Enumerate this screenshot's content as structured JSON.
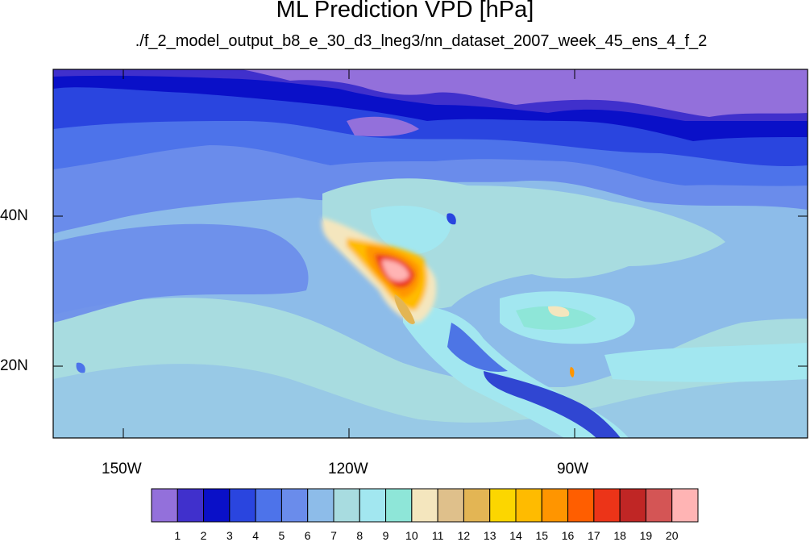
{
  "title": "ML Prediction VPD [hPa]",
  "subtitle": "./f_2_model_output_b8_e_30_d3_lneg3/nn_dataset_2007_week_45_ens_4_f_2",
  "lat_labels": [
    "40N",
    "20N"
  ],
  "lon_labels": [
    "150W",
    "120W",
    "90W"
  ],
  "colorbar": {
    "colors": [
      "#9370DB",
      "#4030CC",
      "#0A10C8",
      "#2A45DF",
      "#4D73EA",
      "#6A8CEB",
      "#8DBCE9",
      "#A8DCE0",
      "#A2E7F0",
      "#8EE6D8",
      "#F4E6BE",
      "#DFC08B",
      "#E3B554",
      "#FCD600",
      "#FFBB00",
      "#FF9500",
      "#FF5E00",
      "#EC3418",
      "#C02625",
      "#D45555",
      "#FFB4B4"
    ],
    "labels": [
      "1",
      "2",
      "3",
      "4",
      "5",
      "6",
      "7",
      "8",
      "9",
      "10",
      "11",
      "12",
      "13",
      "14",
      "15",
      "16",
      "17",
      "18",
      "19",
      "20"
    ]
  }
}
